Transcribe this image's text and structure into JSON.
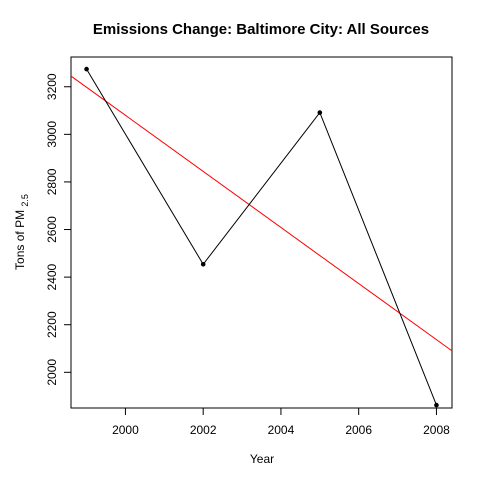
{
  "chart_data": {
    "type": "line",
    "title": "Emissions Change: Baltimore City: All Sources",
    "xlabel": "Year",
    "ylabel": {
      "main": "Tons of PM",
      "subscript": "2.5"
    },
    "x": [
      1999,
      2002,
      2005,
      2008
    ],
    "series": [
      {
        "values": [
          3274.2,
          2453.9,
          3091.4,
          1862.3
        ],
        "color": "#000000",
        "marker": "point"
      }
    ],
    "trendline": {
      "color": "#ff0000",
      "start": [
        1998.6,
        3245
      ],
      "end": [
        2008.4,
        2090
      ]
    },
    "xlim": [
      1998.6,
      2008.4
    ],
    "ylim": [
      1850,
      3325
    ],
    "x_ticks": [
      2000,
      2002,
      2004,
      2006,
      2008
    ],
    "y_ticks": [
      2000,
      2200,
      2400,
      2600,
      2800,
      3000,
      3200
    ],
    "grid": false,
    "legend": "none"
  }
}
